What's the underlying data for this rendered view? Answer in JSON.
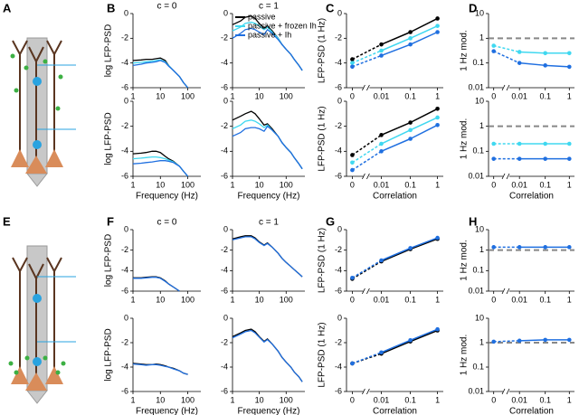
{
  "panel_labels": [
    "A",
    "B",
    "C",
    "D",
    "E",
    "F",
    "G",
    "H"
  ],
  "chart_data": [
    {
      "type": "line",
      "title": "c = 0",
      "ylabel": "log LFP-PSD",
      "xlog": true,
      "xlim": [
        1,
        300
      ],
      "xticks": [
        1,
        10,
        100
      ],
      "ylim": [
        -6,
        0
      ],
      "yticks": [
        -6,
        -4,
        -2,
        0
      ],
      "x": [
        1,
        2,
        3,
        5,
        7,
        10,
        15,
        20,
        30,
        50,
        70,
        100,
        150,
        200,
        300,
        400
      ],
      "series": [
        {
          "color": "#000000",
          "values": [
            -3.8,
            -3.75,
            -3.7,
            -3.7,
            -3.65,
            -3.6,
            -3.8,
            -4.2,
            -4.6,
            -5.1,
            -5.6,
            -6,
            null,
            null,
            null,
            null
          ]
        },
        {
          "color": "#40d8f0",
          "values": [
            -4.0,
            -3.95,
            -3.9,
            -3.85,
            -3.8,
            -3.75,
            -3.9,
            -4.2,
            -4.6,
            -5.1,
            -5.6,
            -6,
            null,
            null,
            null,
            null
          ]
        },
        {
          "color": "#1f6fe0",
          "values": [
            -4.2,
            -4.1,
            -4.0,
            -3.95,
            -3.9,
            -3.8,
            -3.95,
            -4.25,
            -4.6,
            -5.1,
            -5.6,
            -6,
            null,
            null,
            null,
            null
          ]
        }
      ]
    },
    {
      "type": "line",
      "title": "c = 1",
      "legend": "upper left",
      "xlog": true,
      "xlim": [
        1,
        500
      ],
      "xticks": [
        1,
        10,
        100
      ],
      "ylim": [
        -6,
        0
      ],
      "yticks": [
        -6,
        -4,
        -2,
        0
      ],
      "x": [
        1,
        2,
        3,
        5,
        7,
        10,
        15,
        20,
        30,
        50,
        70,
        100,
        150,
        200,
        300,
        400
      ],
      "series": [
        {
          "name": "passive",
          "color": "#000000",
          "values": [
            -0.9,
            -0.6,
            -0.3,
            -0.2,
            -0.4,
            -0.8,
            -1.2,
            -1.0,
            -1.4,
            -2.0,
            -2.5,
            -2.9,
            -3.3,
            -3.7,
            -4.2,
            -4.6
          ]
        },
        {
          "name": "passive + frozen Ih",
          "color": "#40d8f0",
          "values": [
            -1.4,
            -1.1,
            -0.8,
            -0.7,
            -0.8,
            -1.0,
            -1.3,
            -1.1,
            -1.5,
            -2.0,
            -2.5,
            -2.9,
            -3.3,
            -3.7,
            -4.2,
            -4.6
          ]
        },
        {
          "name": "passive + Ih",
          "color": "#1f6fe0",
          "values": [
            -2.0,
            -1.6,
            -1.3,
            -1.2,
            -1.3,
            -1.5,
            -1.7,
            -1.3,
            -1.6,
            -2.1,
            -2.5,
            -2.9,
            -3.3,
            -3.7,
            -4.2,
            -4.6
          ]
        }
      ]
    },
    {
      "type": "line",
      "ylabel": "log LFP-PSD",
      "xlabel": "Frequency (Hz)",
      "xlog": true,
      "xlim": [
        1,
        300
      ],
      "xticks": [
        1,
        10,
        100
      ],
      "ylim": [
        -6,
        0
      ],
      "yticks": [
        -6,
        -4,
        -2,
        0
      ],
      "x": [
        1,
        2,
        3,
        5,
        7,
        10,
        15,
        20,
        30,
        50,
        70,
        100,
        150,
        200,
        300,
        400
      ],
      "series": [
        {
          "color": "#000000",
          "values": [
            -4.2,
            -4.15,
            -4.1,
            -4.0,
            -4.0,
            -4.1,
            -4.4,
            -4.6,
            -4.8,
            -5.2,
            -5.6,
            -6,
            null,
            null,
            null,
            null
          ]
        },
        {
          "color": "#40d8f0",
          "values": [
            -4.6,
            -4.55,
            -4.5,
            -4.45,
            -4.45,
            -4.5,
            -4.6,
            -4.7,
            -4.85,
            -5.2,
            -5.6,
            -6,
            null,
            null,
            null,
            null
          ]
        },
        {
          "color": "#1f6fe0",
          "values": [
            -5.0,
            -4.95,
            -4.9,
            -4.85,
            -4.8,
            -4.75,
            -4.75,
            -4.8,
            -4.9,
            -5.2,
            -5.6,
            -6,
            null,
            null,
            null,
            null
          ]
        }
      ]
    },
    {
      "type": "line",
      "xlabel": "Frequency (Hz)",
      "xlog": true,
      "xlim": [
        1,
        500
      ],
      "xticks": [
        1,
        10,
        100
      ],
      "ylim": [
        -6,
        0
      ],
      "yticks": [
        -6,
        -4,
        -2,
        0
      ],
      "x": [
        1,
        2,
        3,
        5,
        7,
        10,
        15,
        20,
        30,
        50,
        70,
        100,
        150,
        200,
        300,
        400
      ],
      "series": [
        {
          "color": "#000000",
          "values": [
            -1.5,
            -1.2,
            -1.0,
            -0.8,
            -1.0,
            -1.4,
            -1.9,
            -1.8,
            -2.2,
            -2.8,
            -3.3,
            -3.7,
            -4.1,
            -4.5,
            -5.0,
            -5.4
          ]
        },
        {
          "color": "#40d8f0",
          "values": [
            -2.2,
            -1.9,
            -1.6,
            -1.5,
            -1.6,
            -1.8,
            -2.1,
            -1.9,
            -2.3,
            -2.8,
            -3.3,
            -3.7,
            -4.1,
            -4.5,
            -5.0,
            -5.4
          ]
        },
        {
          "color": "#1f6fe0",
          "values": [
            -2.8,
            -2.5,
            -2.2,
            -2.1,
            -2.1,
            -2.2,
            -2.4,
            -2.0,
            -2.3,
            -2.8,
            -3.3,
            -3.7,
            -4.1,
            -4.5,
            -5.0,
            -5.4
          ]
        }
      ]
    },
    {
      "type": "line",
      "ylabel": "LFP-PSD (1 Hz)",
      "categories": [
        "0",
        "0.01",
        "0.1",
        "1"
      ],
      "ylim": [
        -6,
        0
      ],
      "yticks": [
        -6,
        -4,
        -2,
        0
      ],
      "series": [
        {
          "color": "#000000",
          "values": [
            -3.7,
            -2.5,
            -1.5,
            -0.4
          ]
        },
        {
          "color": "#40d8f0",
          "values": [
            -4.0,
            -3.0,
            -2.0,
            -1.0
          ]
        },
        {
          "color": "#1f6fe0",
          "values": [
            -4.3,
            -3.4,
            -2.5,
            -1.5
          ]
        }
      ]
    },
    {
      "type": "line",
      "ylabel": "LFP-PSD (1 Hz)",
      "xlabel": "Correlation",
      "categories": [
        "0",
        "0.01",
        "0.1",
        "1"
      ],
      "ylim": [
        -6,
        0
      ],
      "yticks": [
        -6,
        -4,
        -2,
        0
      ],
      "series": [
        {
          "color": "#000000",
          "values": [
            -4.3,
            -2.7,
            -1.7,
            -0.6
          ]
        },
        {
          "color": "#40d8f0",
          "values": [
            -4.9,
            -3.4,
            -2.3,
            -1.3
          ]
        },
        {
          "color": "#1f6fe0",
          "values": [
            -5.5,
            -4.0,
            -3.0,
            -1.9
          ]
        }
      ]
    },
    {
      "type": "line",
      "ylabel": "1 Hz mod.",
      "categories": [
        "0",
        "0.01",
        "0.1",
        "1"
      ],
      "ylog": true,
      "ylim": [
        0.01,
        10
      ],
      "yticks": [
        0.01,
        0.1,
        1,
        10
      ],
      "reference_line": 1,
      "series": [
        {
          "color": "#40d8f0",
          "values": [
            0.5,
            0.28,
            0.25,
            0.25
          ]
        },
        {
          "color": "#1f6fe0",
          "values": [
            0.3,
            0.1,
            0.08,
            0.07
          ]
        }
      ]
    },
    {
      "type": "line",
      "ylabel": "1 Hz mod.",
      "xlabel": "Correlation",
      "categories": [
        "0",
        "0.01",
        "0.1",
        "1"
      ],
      "ylog": true,
      "ylim": [
        0.01,
        10
      ],
      "yticks": [
        0.01,
        0.1,
        1,
        10
      ],
      "reference_line": 1,
      "series": [
        {
          "color": "#40d8f0",
          "values": [
            0.2,
            0.2,
            0.2,
            0.2
          ]
        },
        {
          "color": "#1f6fe0",
          "values": [
            0.05,
            0.05,
            0.05,
            0.05
          ]
        }
      ]
    },
    {
      "type": "line",
      "title": "c = 0",
      "ylabel": "log LFP-PSD",
      "xlog": true,
      "xlim": [
        1,
        300
      ],
      "xticks": [
        1,
        10,
        100
      ],
      "ylim": [
        -6,
        0
      ],
      "yticks": [
        -6,
        -4,
        -2,
        0
      ],
      "x": [
        1,
        2,
        3,
        5,
        7,
        10,
        15,
        20,
        30,
        50,
        70,
        100,
        150,
        200,
        300,
        400
      ],
      "series": [
        {
          "color": "#000000",
          "values": [
            -4.7,
            -4.7,
            -4.65,
            -4.6,
            -4.6,
            -4.7,
            -5.0,
            -5.3,
            -5.6,
            -6,
            null,
            null,
            null,
            null,
            null,
            null
          ]
        },
        {
          "color": "#1f6fe0",
          "values": [
            -4.75,
            -4.75,
            -4.7,
            -4.65,
            -4.65,
            -4.75,
            -5.05,
            -5.3,
            -5.6,
            -6,
            null,
            null,
            null,
            null,
            null,
            null
          ]
        }
      ]
    },
    {
      "type": "line",
      "title": "c = 1",
      "xlog": true,
      "xlim": [
        1,
        500
      ],
      "xticks": [
        1,
        10,
        100
      ],
      "ylim": [
        -6,
        0
      ],
      "yticks": [
        -6,
        -4,
        -2,
        0
      ],
      "x": [
        1,
        2,
        3,
        5,
        7,
        10,
        15,
        20,
        30,
        50,
        70,
        100,
        150,
        200,
        300,
        400
      ],
      "series": [
        {
          "color": "#000000",
          "values": [
            -0.9,
            -0.7,
            -0.6,
            -0.6,
            -0.8,
            -1.2,
            -1.5,
            -1.3,
            -1.7,
            -2.3,
            -2.8,
            -3.2,
            -3.6,
            -3.9,
            -4.3,
            -4.6
          ]
        },
        {
          "color": "#1f6fe0",
          "values": [
            -1.0,
            -0.8,
            -0.7,
            -0.7,
            -0.9,
            -1.25,
            -1.55,
            -1.35,
            -1.7,
            -2.3,
            -2.8,
            -3.2,
            -3.6,
            -3.9,
            -4.3,
            -4.6
          ]
        }
      ]
    },
    {
      "type": "line",
      "ylabel": "log LFP-PSD",
      "xlabel": "Frequency (Hz)",
      "xlog": true,
      "xlim": [
        1,
        300
      ],
      "xticks": [
        1,
        10,
        100
      ],
      "ylim": [
        -6,
        0
      ],
      "yticks": [
        -6,
        -4,
        -2,
        0
      ],
      "x": [
        1,
        2,
        3,
        5,
        7,
        10,
        15,
        20,
        30,
        50,
        70,
        100,
        150,
        200,
        300,
        400
      ],
      "series": [
        {
          "color": "#000000",
          "values": [
            -3.7,
            -3.75,
            -3.8,
            -3.8,
            -3.75,
            -3.8,
            -3.9,
            -4.0,
            -4.1,
            -4.3,
            -4.5,
            -4.6,
            null,
            null,
            null,
            null
          ]
        },
        {
          "color": "#1f6fe0",
          "values": [
            -3.75,
            -3.8,
            -3.85,
            -3.8,
            -3.8,
            -3.85,
            -3.95,
            -4.0,
            -4.15,
            -4.3,
            -4.5,
            -4.6,
            null,
            null,
            null,
            null
          ]
        }
      ]
    },
    {
      "type": "line",
      "xlabel": "Frequency (Hz)",
      "xlog": true,
      "xlim": [
        1,
        500
      ],
      "xticks": [
        1,
        10,
        100
      ],
      "ylim": [
        -6,
        0
      ],
      "yticks": [
        -6,
        -4,
        -2,
        0
      ],
      "x": [
        1,
        2,
        3,
        5,
        7,
        10,
        15,
        20,
        30,
        50,
        70,
        100,
        150,
        200,
        300,
        400
      ],
      "series": [
        {
          "color": "#000000",
          "values": [
            -1.5,
            -1.2,
            -1.0,
            -0.9,
            -1.1,
            -1.5,
            -1.9,
            -1.7,
            -2.1,
            -2.7,
            -3.2,
            -3.6,
            -4.0,
            -4.4,
            -4.8,
            -5.2
          ]
        },
        {
          "color": "#1f6fe0",
          "values": [
            -1.6,
            -1.3,
            -1.1,
            -1.0,
            -1.2,
            -1.55,
            -1.95,
            -1.75,
            -2.1,
            -2.7,
            -3.2,
            -3.6,
            -4.0,
            -4.4,
            -4.8,
            -5.2
          ]
        }
      ]
    },
    {
      "type": "line",
      "ylabel": "LFP-PSD (1 Hz)",
      "categories": [
        "0",
        "0.01",
        "0.1",
        "1"
      ],
      "ylim": [
        -6,
        0
      ],
      "yticks": [
        -6,
        -4,
        -2,
        0
      ],
      "series": [
        {
          "color": "#000000",
          "values": [
            -4.8,
            -3.1,
            -1.9,
            -0.9
          ]
        },
        {
          "color": "#1f6fe0",
          "values": [
            -4.7,
            -3.0,
            -1.8,
            -0.8
          ]
        }
      ]
    },
    {
      "type": "line",
      "ylabel": "LFP-PSD (1 Hz)",
      "xlabel": "Correlation",
      "categories": [
        "0",
        "0.01",
        "0.1",
        "1"
      ],
      "ylim": [
        -6,
        0
      ],
      "yticks": [
        -6,
        -4,
        -2,
        0
      ],
      "series": [
        {
          "color": "#000000",
          "values": [
            -3.7,
            -2.9,
            -1.9,
            -1.0
          ]
        },
        {
          "color": "#1f6fe0",
          "values": [
            -3.7,
            -2.8,
            -1.8,
            -0.9
          ]
        }
      ]
    },
    {
      "type": "line",
      "ylabel": "1 Hz mod.",
      "categories": [
        "0",
        "0.01",
        "0.1",
        "1"
      ],
      "ylog": true,
      "ylim": [
        0.01,
        10
      ],
      "yticks": [
        0.01,
        0.1,
        1,
        10
      ],
      "reference_line": 1,
      "series": [
        {
          "color": "#1f6fe0",
          "values": [
            1.4,
            1.4,
            1.4,
            1.4
          ]
        }
      ]
    },
    {
      "type": "line",
      "ylabel": "1 Hz mod.",
      "xlabel": "Correlation",
      "categories": [
        "0",
        "0.01",
        "0.1",
        "1"
      ],
      "ylog": true,
      "ylim": [
        0.01,
        10
      ],
      "yticks": [
        0.01,
        0.1,
        1,
        10
      ],
      "reference_line": 1,
      "series": [
        {
          "color": "#1f6fe0",
          "values": [
            1.1,
            1.2,
            1.3,
            1.3
          ]
        }
      ]
    }
  ]
}
